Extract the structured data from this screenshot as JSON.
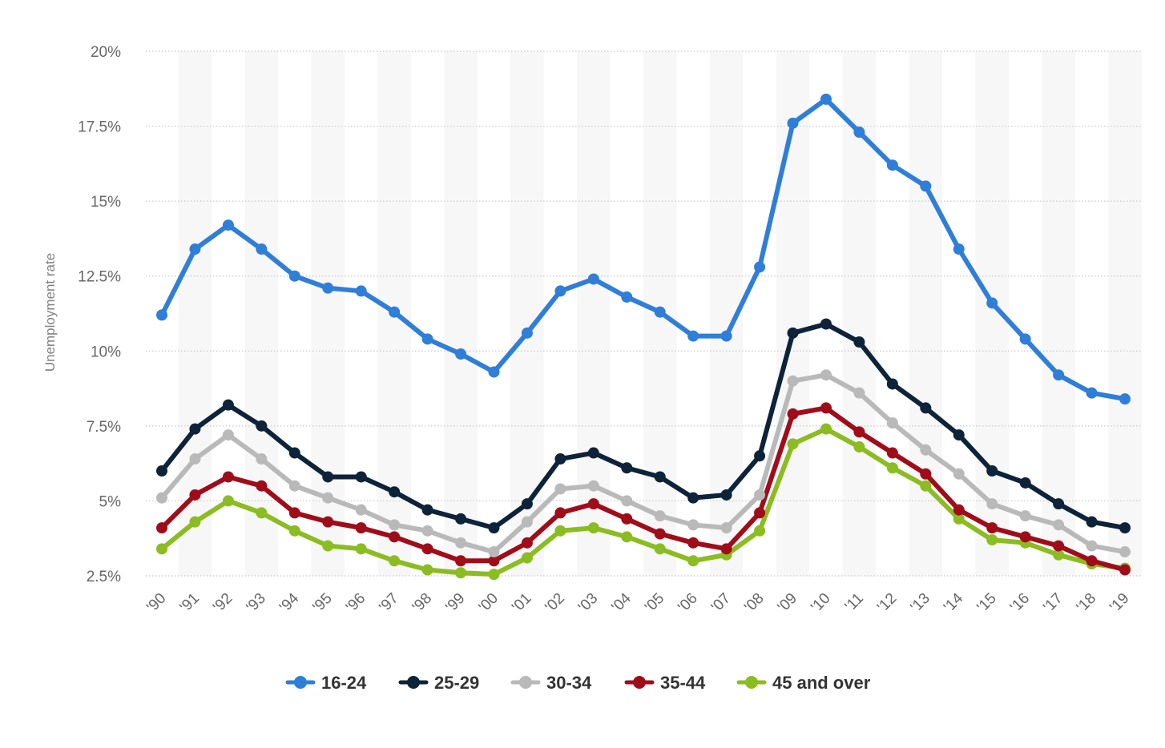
{
  "chart_data": {
    "type": "line",
    "title": "",
    "xlabel": "",
    "ylabel": "Unemployment rate",
    "ylim": [
      2.5,
      20
    ],
    "y_ticks": [
      2.5,
      5,
      7.5,
      10,
      12.5,
      15,
      17.5,
      20
    ],
    "y_tick_labels": [
      "2.5%",
      "5%",
      "7.5%",
      "10%",
      "12.5%",
      "15%",
      "17.5%",
      "20%"
    ],
    "categories": [
      "'90",
      "'91",
      "'92",
      "'93",
      "'94",
      "'95",
      "'96",
      "'97",
      "'98",
      "'99",
      "'00",
      "'01",
      "'02",
      "'03",
      "'04",
      "'05",
      "'06",
      "'07",
      "'08",
      "'09",
      "'10",
      "'11",
      "'12",
      "'13",
      "'14",
      "'15",
      "'16",
      "'17",
      "'18",
      "'19"
    ],
    "grid": true,
    "legend_position": "bottom-center",
    "series": [
      {
        "name": "16-24",
        "color": "#2f7ed8",
        "values": [
          11.2,
          13.4,
          14.2,
          13.4,
          12.5,
          12.1,
          12.0,
          11.3,
          10.4,
          9.9,
          9.3,
          10.6,
          12.0,
          12.4,
          11.8,
          11.3,
          10.5,
          10.5,
          12.8,
          17.6,
          18.4,
          17.3,
          16.2,
          15.5,
          13.4,
          11.6,
          10.4,
          9.2,
          8.6,
          8.4
        ]
      },
      {
        "name": "25-29",
        "color": "#0d233a",
        "values": [
          6.0,
          7.4,
          8.2,
          7.5,
          6.6,
          5.8,
          5.8,
          5.3,
          4.7,
          4.4,
          4.1,
          4.9,
          6.4,
          6.6,
          6.1,
          5.8,
          5.1,
          5.2,
          6.5,
          10.6,
          10.9,
          10.3,
          8.9,
          8.1,
          7.2,
          6.0,
          5.6,
          4.9,
          4.3,
          4.1
        ]
      },
      {
        "name": "30-34",
        "color": "#b9b9b9",
        "values": [
          5.1,
          6.4,
          7.2,
          6.4,
          5.5,
          5.1,
          4.7,
          4.2,
          4.0,
          3.6,
          3.3,
          4.3,
          5.4,
          5.5,
          5.0,
          4.5,
          4.2,
          4.1,
          5.2,
          9.0,
          9.2,
          8.6,
          7.6,
          6.7,
          5.9,
          4.9,
          4.5,
          4.2,
          3.5,
          3.3
        ]
      },
      {
        "name": "35-44",
        "color": "#a00d1a",
        "values": [
          4.1,
          5.2,
          5.8,
          5.5,
          4.6,
          4.3,
          4.1,
          3.8,
          3.4,
          3.0,
          3.0,
          3.6,
          4.6,
          4.9,
          4.4,
          3.9,
          3.6,
          3.4,
          4.6,
          7.9,
          8.1,
          7.3,
          6.6,
          5.9,
          4.7,
          4.1,
          3.8,
          3.5,
          3.0,
          2.7
        ]
      },
      {
        "name": "45 and over",
        "color": "#8bbc21",
        "values": [
          3.4,
          4.3,
          5.0,
          4.6,
          4.0,
          3.5,
          3.4,
          3.0,
          2.7,
          2.6,
          2.55,
          3.1,
          4.0,
          4.1,
          3.8,
          3.4,
          3.0,
          3.2,
          4.0,
          6.9,
          7.4,
          6.8,
          6.1,
          5.5,
          4.4,
          3.7,
          3.6,
          3.2,
          2.9,
          2.75
        ]
      }
    ]
  }
}
